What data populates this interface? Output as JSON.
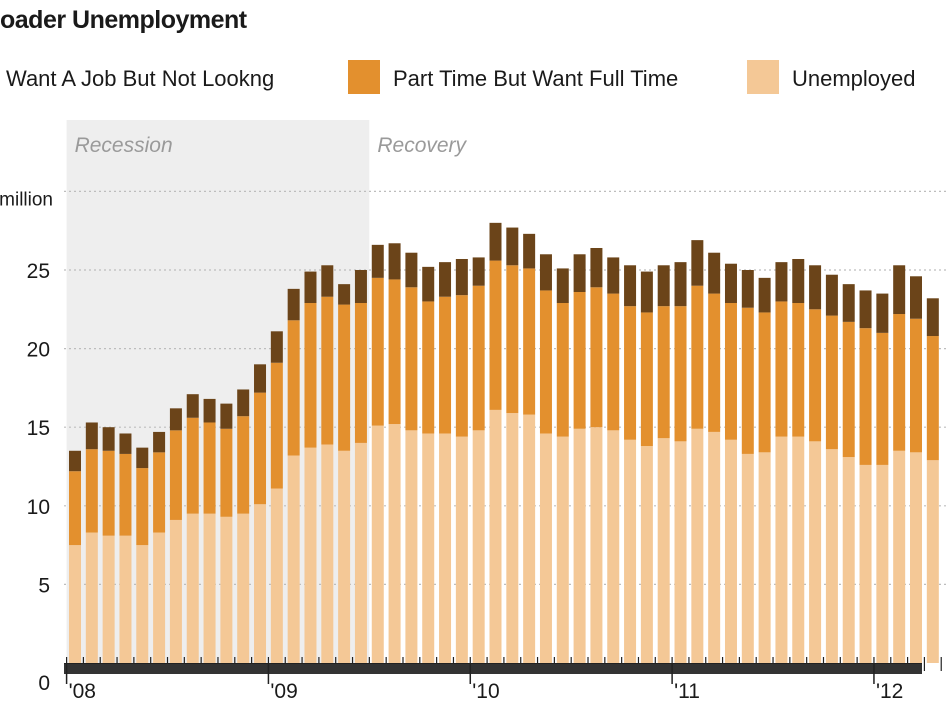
{
  "chart_data": {
    "type": "bar",
    "stacked": true,
    "title": "oader Unemployment",
    "ylabel": "million",
    "ylim": [
      0,
      30
    ],
    "y_ticks": [
      0,
      5,
      10,
      15,
      20,
      25
    ],
    "grid": true,
    "legend_position": "top",
    "x_tick_labels": [
      "'08",
      "'09",
      "'10",
      "'11",
      "'12"
    ],
    "x_tick_months": [
      "2008-01",
      "2009-01",
      "2010-01",
      "2011-01",
      "2012-01"
    ],
    "shaded_regions": [
      {
        "label": "Recession",
        "start": "2008-01",
        "end": "2009-06",
        "color": "#eeeeee"
      },
      {
        "label": "Recovery",
        "start": "2009-07",
        "end": "2012-04",
        "color": "#ffffff"
      }
    ],
    "months": [
      "2008-01",
      "2008-02",
      "2008-03",
      "2008-04",
      "2008-05",
      "2008-06",
      "2008-07",
      "2008-08",
      "2008-09",
      "2008-10",
      "2008-11",
      "2008-12",
      "2009-01",
      "2009-02",
      "2009-03",
      "2009-04",
      "2009-05",
      "2009-06",
      "2009-07",
      "2009-08",
      "2009-09",
      "2009-10",
      "2009-11",
      "2009-12",
      "2010-01",
      "2010-02",
      "2010-03",
      "2010-04",
      "2010-05",
      "2010-06",
      "2010-07",
      "2010-08",
      "2010-09",
      "2010-10",
      "2010-11",
      "2010-12",
      "2011-01",
      "2011-02",
      "2011-03",
      "2011-04",
      "2011-05",
      "2011-06",
      "2011-07",
      "2011-08",
      "2011-09",
      "2011-10",
      "2011-11",
      "2011-12",
      "2012-01",
      "2012-02",
      "2012-03",
      "2012-04"
    ],
    "series": [
      {
        "name": "Unemployed",
        "color": "#f4c896",
        "values": [
          7.5,
          8.3,
          8.1,
          8.1,
          7.5,
          8.3,
          9.1,
          9.5,
          9.5,
          9.3,
          9.5,
          10.1,
          11.1,
          13.2,
          13.7,
          13.9,
          13.5,
          14.0,
          15.1,
          15.2,
          14.8,
          14.6,
          14.6,
          14.4,
          14.8,
          16.1,
          15.9,
          15.8,
          14.6,
          14.4,
          14.9,
          15.0,
          14.8,
          14.2,
          13.8,
          14.3,
          14.1,
          14.9,
          14.7,
          14.2,
          13.3,
          13.4,
          14.4,
          14.4,
          14.1,
          13.6,
          13.1,
          12.6,
          12.6,
          13.5,
          13.4,
          12.9
        ]
      },
      {
        "name": "Part Time But Want Full Time",
        "color": "#e3902e",
        "values": [
          4.7,
          5.3,
          5.4,
          5.2,
          4.9,
          5.1,
          5.7,
          6.1,
          5.8,
          5.6,
          6.2,
          7.1,
          8.0,
          8.6,
          9.2,
          9.4,
          9.3,
          8.9,
          9.4,
          9.2,
          9.1,
          8.4,
          8.7,
          9.0,
          9.2,
          9.5,
          9.4,
          9.3,
          9.1,
          8.5,
          8.7,
          8.9,
          8.7,
          8.5,
          8.5,
          8.4,
          8.6,
          9.1,
          8.8,
          8.7,
          9.3,
          8.9,
          8.6,
          8.5,
          8.4,
          8.5,
          8.6,
          8.7,
          8.4,
          8.7,
          8.5,
          7.9
        ]
      },
      {
        "name": "Want A Job But Not Lookng",
        "color": "#6b4419",
        "values": [
          1.3,
          1.7,
          1.5,
          1.3,
          1.3,
          1.3,
          1.4,
          1.5,
          1.5,
          1.6,
          1.7,
          1.8,
          2.0,
          2.0,
          2.0,
          2.0,
          1.3,
          2.1,
          2.1,
          2.3,
          2.2,
          2.2,
          2.2,
          2.3,
          1.8,
          2.4,
          2.4,
          2.2,
          2.3,
          2.2,
          2.4,
          2.5,
          2.3,
          2.6,
          2.6,
          2.6,
          2.8,
          2.9,
          2.6,
          2.5,
          2.4,
          2.2,
          2.5,
          2.8,
          2.8,
          2.6,
          2.4,
          2.4,
          2.5,
          3.1,
          2.7,
          2.4
        ]
      }
    ],
    "legend_order": [
      "Want A Job But Not Lookng",
      "Part Time But Want Full Time",
      "Unemployed"
    ]
  }
}
